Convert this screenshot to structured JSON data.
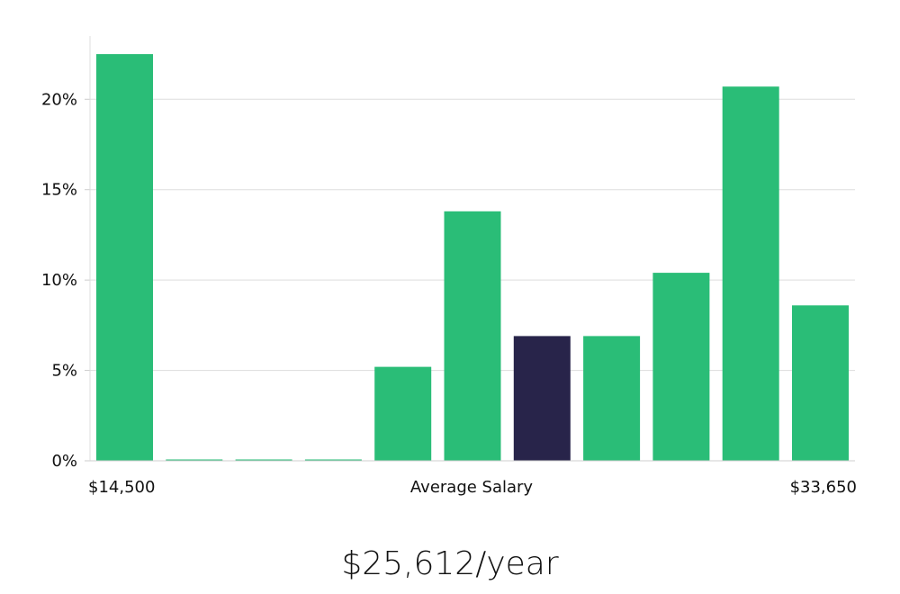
{
  "chart_data": {
    "type": "bar",
    "title": "$25,612/year",
    "xlabel": "Average Salary",
    "x_min_label": "$14,500",
    "x_max_label": "$33,650",
    "ylabel": "",
    "ylim": [
      0,
      23.5
    ],
    "yticks": [
      0,
      5,
      10,
      15,
      20
    ],
    "ytick_labels": [
      "0%",
      "5%",
      "10%",
      "15%",
      "20%"
    ],
    "grid": true,
    "highlight_index": 6,
    "values": [
      22.5,
      0,
      0,
      0,
      5.2,
      13.8,
      6.9,
      6.9,
      10.4,
      20.7,
      8.6
    ]
  },
  "colors": {
    "bar": "#2abd77",
    "highlight": "#28244a",
    "grid": "#dddddd"
  }
}
